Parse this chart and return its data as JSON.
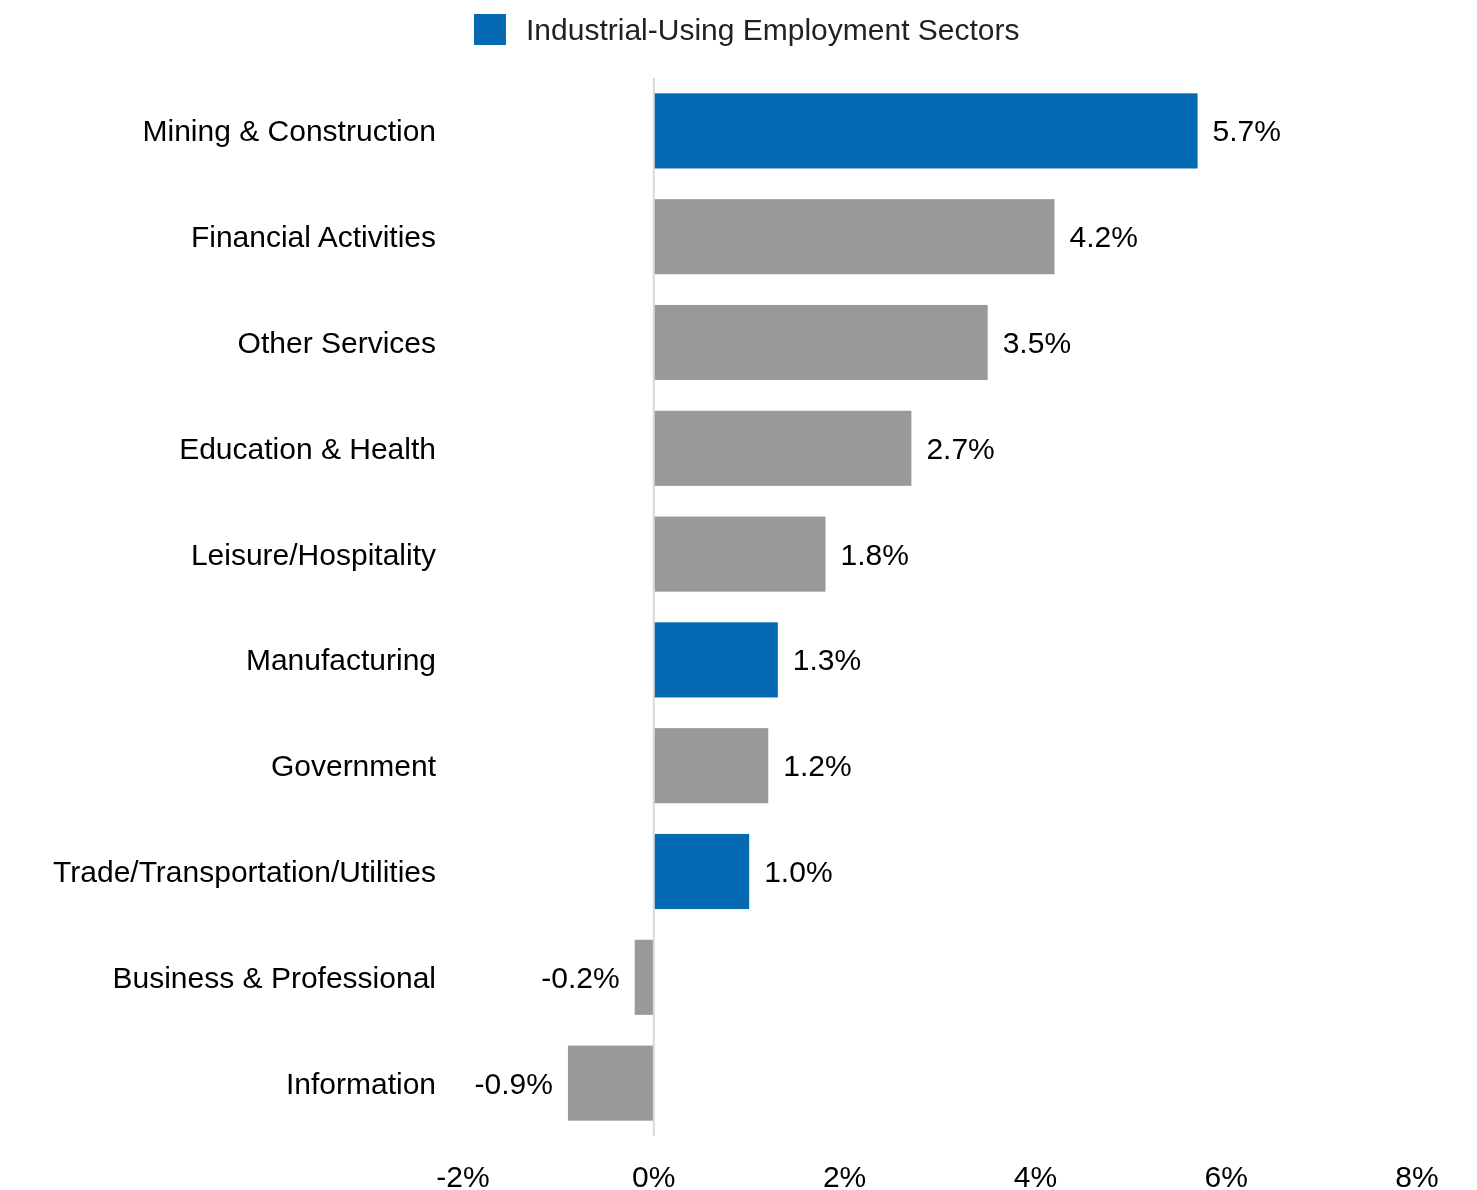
{
  "chart_data": {
    "type": "bar",
    "orientation": "horizontal",
    "legend": "top",
    "categories": [
      "Mining & Construction",
      "Financial Activities",
      "Other Services",
      "Education & Health",
      "Leisure/Hospitality",
      "Manufacturing",
      "Government",
      "Trade/Transportation/Utilities",
      "Business & Professional",
      "Information"
    ],
    "series": [
      {
        "name": "Industrial-Using Employment Sectors",
        "color": "#0569b4",
        "values": [
          5.7,
          null,
          null,
          null,
          null,
          1.3,
          null,
          1.0,
          null,
          null
        ],
        "value_labels": [
          "5.7%",
          null,
          null,
          null,
          null,
          "1.3%",
          null,
          "1.0%",
          null,
          null
        ]
      },
      {
        "color": "#999999",
        "values": [
          null,
          4.2,
          3.5,
          2.7,
          1.8,
          null,
          1.2,
          null,
          -0.2,
          -0.9
        ],
        "value_labels": [
          null,
          "4.2%",
          "3.5%",
          "2.7%",
          "1.8%",
          null,
          "1.2%",
          null,
          "-0.2%",
          "-0.9%"
        ]
      }
    ],
    "xlim": [
      -2,
      8
    ],
    "xticks": [
      {
        "value": -2,
        "label": "-2%"
      },
      {
        "value": 0,
        "label": "0%"
      },
      {
        "value": 2,
        "label": "2%"
      },
      {
        "value": 4,
        "label": "4%"
      },
      {
        "value": 6,
        "label": "6%"
      },
      {
        "value": 8,
        "label": "8%"
      }
    ]
  }
}
